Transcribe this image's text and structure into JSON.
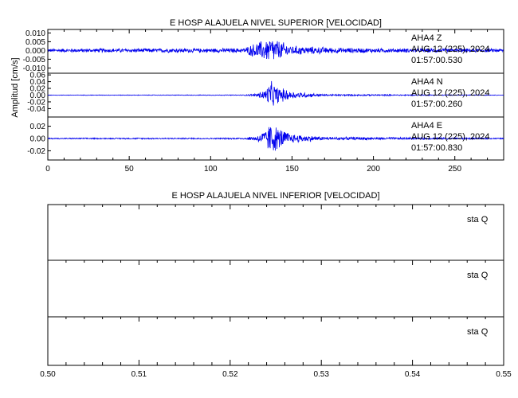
{
  "chart_data": [
    {
      "type": "line",
      "title": "E HOSP ALAJUELA NIVEL SUPERIOR [VELOCIDAD]",
      "ylabel": "Amplitud [cm/s]",
      "xlabel": "",
      "xlim": [
        0,
        280
      ],
      "x_ticks": [
        "0",
        "50",
        "100",
        "150",
        "200",
        "250"
      ],
      "panels": [
        {
          "station": "AHA4",
          "component": "Z",
          "date": "AUG 12 (225), 2024",
          "time": "01:57:00.530",
          "ylim": [
            -0.013,
            0.012
          ],
          "y_ticks": [
            "0.010",
            "0.005",
            "0.000",
            "-0.005",
            "-0.010"
          ],
          "envelope": {
            "t": [
              0,
              25,
              120,
              128,
              135,
              137,
              140,
              150,
              175,
              200,
              280
            ],
            "amp": [
              0.0011,
              0.0012,
              0.0014,
              0.005,
              0.007,
              0.009,
              0.007,
              0.003,
              0.0018,
              0.0014,
              0.0011
            ]
          }
        },
        {
          "station": "AHA4",
          "component": "N",
          "date": "AUG 12 (225), 2024",
          "time": "01:57:00.260",
          "ylim": [
            -0.065,
            0.065
          ],
          "y_ticks": [
            "0.06",
            "0.04",
            "0.02",
            "0.00",
            "-0.02",
            "-0.04"
          ],
          "envelope": {
            "t": [
              0,
              120,
              128,
              134,
              137,
              140,
              150,
              170,
              280
            ],
            "amp": [
              0.0008,
              0.0012,
              0.005,
              0.02,
              0.045,
              0.03,
              0.012,
              0.003,
              0.0008
            ]
          }
        },
        {
          "station": "AHA4",
          "component": "E",
          "date": "AUG 12 (225), 2024",
          "time": "01:57:00.830",
          "ylim": [
            -0.035,
            0.035
          ],
          "y_ticks": [
            "0.02",
            "0.00",
            "-0.02"
          ],
          "envelope": {
            "t": [
              0,
              120,
              128,
              134,
              137,
              140,
              150,
              170,
              280
            ],
            "amp": [
              0.001,
              0.0013,
              0.005,
              0.016,
              0.03,
              0.022,
              0.008,
              0.003,
              0.001
            ]
          }
        }
      ]
    },
    {
      "type": "line",
      "title": "E HOSP ALAJUELA NIVEL INFERIOR [VELOCIDAD]",
      "xlabel": "",
      "ylabel": "",
      "xlim": [
        0.5,
        0.55
      ],
      "x_ticks": [
        "0.50",
        "0.51",
        "0.52",
        "0.53",
        "0.54",
        "0.55"
      ],
      "panels": [
        {
          "label": "sta   Q"
        },
        {
          "label": "sta   Q"
        },
        {
          "label": "sta   Q"
        }
      ]
    }
  ]
}
